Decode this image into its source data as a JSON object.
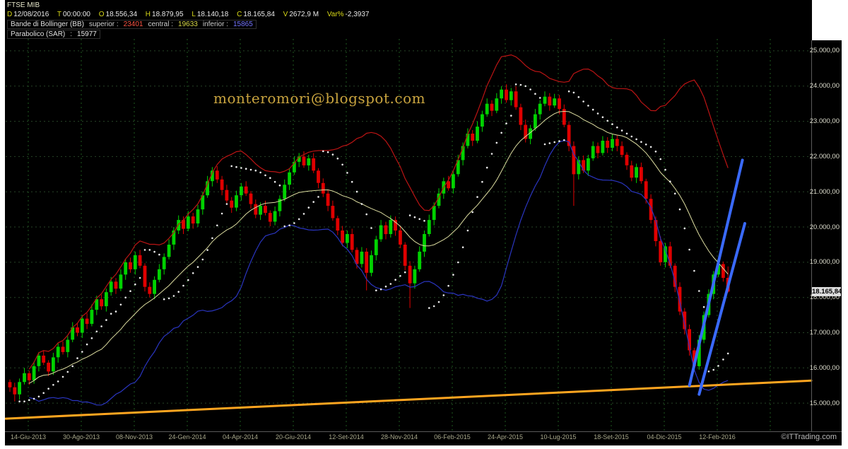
{
  "header": {
    "symbol": "FTSE MIB",
    "quote": [
      {
        "label": "D",
        "value": "12/08/2016"
      },
      {
        "label": "T",
        "value": "00:00:00"
      },
      {
        "label": "O",
        "value": "18.556,34"
      },
      {
        "label": "H",
        "value": "18.879,95"
      },
      {
        "label": "L",
        "value": "18.140,18"
      },
      {
        "label": "C",
        "value": "18.165,84"
      },
      {
        "label": "V",
        "value": "2672,9 M"
      },
      {
        "label": "Var%",
        "value": "-2,3937"
      }
    ],
    "indicators": [
      {
        "name": "Bande di Bollinger (BB)",
        "params": [
          {
            "label": "superior :",
            "value": "23401",
            "color": "#ff5544"
          },
          {
            "label": "central :",
            "value": "19633",
            "color": "#d8d848"
          },
          {
            "label": "inferior :",
            "value": "15865",
            "color": "#7575ff"
          }
        ]
      },
      {
        "name": "Parabolico (SAR)",
        "params": [
          {
            "label": ":",
            "value": "15977",
            "color": "#e9e9e9"
          }
        ]
      }
    ]
  },
  "watermark": {
    "email": "monteromori@blogspot.com",
    "site": "©ITTrading.com"
  },
  "chart_data": {
    "type": "candlestick",
    "title": "FTSE MIB",
    "grid": true,
    "ylim": [
      14200,
      25340
    ],
    "y_ticks": [
      {
        "value": 25000,
        "label": "25.000,00"
      },
      {
        "value": 24000,
        "label": "24.000,00"
      },
      {
        "value": 23000,
        "label": "23.000,00"
      },
      {
        "value": 22000,
        "label": "22.000,00"
      },
      {
        "value": 21000,
        "label": "21.000,00"
      },
      {
        "value": 20000,
        "label": "20.000,00"
      },
      {
        "value": 19000,
        "label": "19.000,00"
      },
      {
        "value": 18000,
        "label": "18.000,00"
      },
      {
        "value": 17000,
        "label": "17.000,00"
      },
      {
        "value": 16000,
        "label": "16.000,00"
      },
      {
        "value": 15000,
        "label": "15.000,00"
      }
    ],
    "x_tick_labels": [
      "14-Giu-2013",
      "30-Ago-2013",
      "08-Nov-2013",
      "24-Gen-2014",
      "04-Apr-2014",
      "20-Giu-2014",
      "12-Set-2014",
      "28-Nov-2014",
      "06-Feb-2015",
      "24-Apr-2015",
      "10-Lug-2015",
      "18-Set-2015",
      "04-Dic-2015",
      "12-Feb-2016"
    ],
    "last_price": {
      "value": 18165.84,
      "label": "18.165,84"
    },
    "colors": {
      "up": "#00d200",
      "down": "#e00000",
      "grid_v": "#1e5a1e",
      "grid_h": "#274427"
    },
    "candles": [
      [
        15600,
        15670,
        15320,
        15450
      ],
      [
        15450,
        15580,
        15050,
        15250
      ],
      [
        15250,
        15700,
        15100,
        15600
      ],
      [
        15600,
        16000,
        15530,
        15850
      ],
      [
        15850,
        15920,
        15520,
        15650
      ],
      [
        15650,
        16180,
        15550,
        16050
      ],
      [
        16050,
        16450,
        15900,
        16350
      ],
      [
        16350,
        16500,
        16080,
        16150
      ],
      [
        16150,
        16220,
        15770,
        15900
      ],
      [
        15900,
        16430,
        15800,
        16300
      ],
      [
        16300,
        16700,
        16150,
        16600
      ],
      [
        16600,
        16750,
        16380,
        16450
      ],
      [
        16450,
        16900,
        16300,
        16800
      ],
      [
        16800,
        17300,
        16730,
        17150
      ],
      [
        17150,
        17280,
        16900,
        17000
      ],
      [
        17000,
        17500,
        16850,
        17400
      ],
      [
        17400,
        17550,
        17100,
        17250
      ],
      [
        17250,
        17800,
        17180,
        17650
      ],
      [
        17650,
        18050,
        17500,
        17950
      ],
      [
        17950,
        18080,
        17650,
        17750
      ],
      [
        17750,
        18250,
        17600,
        18150
      ],
      [
        18150,
        18580,
        18050,
        18450
      ],
      [
        18450,
        18550,
        18100,
        18250
      ],
      [
        18250,
        18800,
        18180,
        18650
      ],
      [
        18650,
        19100,
        18500,
        19000
      ],
      [
        19000,
        19130,
        18700,
        18800
      ],
      [
        18800,
        19300,
        18650,
        19200
      ],
      [
        19200,
        19350,
        18830,
        18900
      ],
      [
        18900,
        18970,
        18170,
        18300
      ],
      [
        18300,
        18430,
        18000,
        18100
      ],
      [
        18100,
        18600,
        17950,
        18500
      ],
      [
        18500,
        18950,
        18430,
        18800
      ],
      [
        18800,
        19250,
        18650,
        19150
      ],
      [
        19150,
        19650,
        19080,
        19500
      ],
      [
        19500,
        20000,
        19350,
        19900
      ],
      [
        19900,
        20330,
        19800,
        20200
      ],
      [
        20200,
        20300,
        19800,
        19950
      ],
      [
        19950,
        20450,
        19880,
        20300
      ],
      [
        20300,
        20400,
        19950,
        20100
      ],
      [
        20100,
        20630,
        20000,
        20500
      ],
      [
        20500,
        21000,
        20350,
        20900
      ],
      [
        20900,
        21450,
        20830,
        21300
      ],
      [
        21300,
        21700,
        21150,
        21600
      ],
      [
        21600,
        21730,
        21250,
        21350
      ],
      [
        21350,
        21450,
        20900,
        21050
      ],
      [
        21050,
        21200,
        20680,
        20750
      ],
      [
        20750,
        20850,
        20400,
        20550
      ],
      [
        20550,
        21030,
        20450,
        20900
      ],
      [
        20900,
        21250,
        20750,
        21150
      ],
      [
        21150,
        21300,
        20880,
        20950
      ],
      [
        20950,
        21020,
        20520,
        20650
      ],
      [
        20650,
        20780,
        20250,
        20350
      ],
      [
        20350,
        20700,
        20200,
        20600
      ],
      [
        20600,
        20750,
        20330,
        20400
      ],
      [
        20400,
        20470,
        20020,
        20150
      ],
      [
        20150,
        20580,
        20050,
        20450
      ],
      [
        20450,
        20900,
        20300,
        20800
      ],
      [
        20800,
        21350,
        20730,
        21200
      ],
      [
        21200,
        21650,
        21050,
        21550
      ],
      [
        21550,
        22000,
        21480,
        21850
      ],
      [
        21850,
        22100,
        21700,
        22000
      ],
      [
        22000,
        22150,
        21680,
        21750
      ],
      [
        21750,
        22050,
        21600,
        21950
      ],
      [
        21950,
        22100,
        21530,
        21600
      ],
      [
        21600,
        21670,
        21100,
        21250
      ],
      [
        21250,
        21380,
        20850,
        20950
      ],
      [
        20950,
        21050,
        20450,
        20600
      ],
      [
        20600,
        20750,
        20180,
        20250
      ],
      [
        20250,
        20320,
        19770,
        19900
      ],
      [
        19900,
        20030,
        19450,
        19550
      ],
      [
        19550,
        19900,
        19400,
        19800
      ],
      [
        19800,
        19950,
        19280,
        19350
      ],
      [
        19350,
        19420,
        18820,
        18950
      ],
      [
        18950,
        19430,
        18850,
        19300
      ],
      [
        19300,
        19400,
        18200,
        18700
      ],
      [
        18700,
        19330,
        18600,
        19200
      ],
      [
        19200,
        19750,
        19050,
        19650
      ],
      [
        19650,
        20200,
        19580,
        20050
      ],
      [
        20050,
        20150,
        19650,
        19800
      ],
      [
        19800,
        20330,
        19700,
        20200
      ],
      [
        20200,
        20300,
        19750,
        19900
      ],
      [
        19900,
        20030,
        19400,
        19500
      ],
      [
        19500,
        19570,
        18770,
        18900
      ],
      [
        18900,
        19030,
        17700,
        18400
      ],
      [
        18400,
        18900,
        18250,
        18800
      ],
      [
        18800,
        19450,
        18730,
        19300
      ],
      [
        19300,
        19900,
        19150,
        19800
      ],
      [
        19800,
        20350,
        19730,
        20200
      ],
      [
        20200,
        20700,
        20050,
        20600
      ],
      [
        20600,
        21100,
        20530,
        20950
      ],
      [
        20950,
        21400,
        20800,
        21300
      ],
      [
        21300,
        21450,
        21030,
        21100
      ],
      [
        21100,
        21600,
        20950,
        21500
      ],
      [
        21500,
        22050,
        21430,
        21900
      ],
      [
        21900,
        22400,
        21750,
        22300
      ],
      [
        22300,
        22800,
        22230,
        22650
      ],
      [
        22650,
        22750,
        22300,
        22450
      ],
      [
        22450,
        23000,
        22380,
        22850
      ],
      [
        22850,
        23300,
        22700,
        23200
      ],
      [
        23200,
        23650,
        23130,
        23500
      ],
      [
        23500,
        23600,
        23150,
        23300
      ],
      [
        23300,
        23800,
        23230,
        23650
      ],
      [
        23650,
        24000,
        23500,
        23900
      ],
      [
        23900,
        24050,
        23530,
        23600
      ],
      [
        23600,
        23950,
        23450,
        23850
      ],
      [
        23850,
        24000,
        23330,
        23400
      ],
      [
        23400,
        23500,
        22750,
        22900
      ],
      [
        22900,
        23050,
        22400,
        22500
      ],
      [
        22500,
        22900,
        22350,
        22800
      ],
      [
        22800,
        23350,
        22730,
        23200
      ],
      [
        23200,
        23600,
        23050,
        23500
      ],
      [
        23500,
        23850,
        23430,
        23700
      ],
      [
        23700,
        23800,
        23300,
        23450
      ],
      [
        23450,
        23780,
        23380,
        23650
      ],
      [
        23650,
        23750,
        23200,
        23350
      ],
      [
        23350,
        23480,
        22830,
        22900
      ],
      [
        22900,
        23000,
        22150,
        22300
      ],
      [
        22300,
        22430,
        20600,
        21500
      ],
      [
        21500,
        22000,
        21350,
        21900
      ],
      [
        21900,
        22030,
        21530,
        21600
      ],
      [
        21600,
        22050,
        21450,
        21950
      ],
      [
        21950,
        22430,
        21880,
        22300
      ],
      [
        22300,
        22400,
        21950,
        22100
      ],
      [
        22100,
        22580,
        22030,
        22450
      ],
      [
        22450,
        22550,
        22100,
        22250
      ],
      [
        22250,
        22630,
        22150,
        22500
      ],
      [
        22500,
        22600,
        22150,
        22300
      ],
      [
        22300,
        22430,
        21980,
        22050
      ],
      [
        22050,
        22120,
        21620,
        21750
      ],
      [
        21750,
        21880,
        21300,
        21400
      ],
      [
        21400,
        21800,
        21250,
        21700
      ],
      [
        21700,
        21830,
        21230,
        21300
      ],
      [
        21300,
        21370,
        20670,
        20800
      ],
      [
        20800,
        20930,
        20100,
        20200
      ],
      [
        20200,
        20300,
        19450,
        19600
      ],
      [
        19600,
        19730,
        18900,
        19000
      ],
      [
        19000,
        19550,
        18850,
        19450
      ],
      [
        19450,
        19580,
        18830,
        18900
      ],
      [
        18900,
        18970,
        18150,
        18300
      ],
      [
        18300,
        18430,
        17500,
        17600
      ],
      [
        17600,
        17700,
        16950,
        17100
      ],
      [
        17100,
        17230,
        16350,
        16500
      ],
      [
        16500,
        16570,
        15900,
        16050
      ],
      [
        16050,
        16930,
        15950,
        16800
      ],
      [
        16800,
        17600,
        16700,
        17500
      ],
      [
        17500,
        18230,
        17430,
        18100
      ],
      [
        18100,
        18750,
        17950,
        18650
      ],
      [
        18650,
        19080,
        18580,
        18950
      ],
      [
        18950,
        19020,
        18450,
        18556
      ],
      [
        18556,
        18880,
        18140,
        18166
      ]
    ],
    "overlays": {
      "bollinger": {
        "period": 20,
        "stddev": 2,
        "colors": {
          "upper": "#bb1414",
          "middle": "#ddddA0",
          "lower": "#2a35c0"
        }
      },
      "parabolic_sar": {
        "color": "#ffffff"
      },
      "trendlines": [
        {
          "name": "long-term-support",
          "color": "#ffa520",
          "width": 3,
          "from": {
            "x_frac": 0.0,
            "price": 14560
          },
          "to": {
            "x_frac": 1.0,
            "price": 15640
          }
        },
        {
          "name": "steep-support-1",
          "color": "#3a6aff",
          "width": 4,
          "from": {
            "index": 141,
            "price": 15500
          },
          "to": {
            "index": 152,
            "price": 21900
          }
        },
        {
          "name": "steep-support-2",
          "color": "#3a6aff",
          "width": 4,
          "from": {
            "index": 143,
            "price": 15250
          },
          "to": {
            "index": 152.5,
            "price": 20100
          }
        }
      ]
    }
  }
}
